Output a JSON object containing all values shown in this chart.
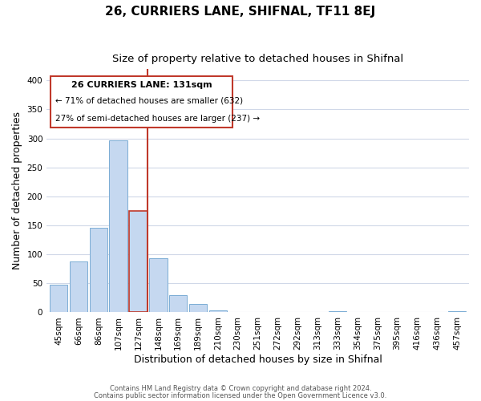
{
  "title": "26, CURRIERS LANE, SHIFNAL, TF11 8EJ",
  "subtitle": "Size of property relative to detached houses in Shifnal",
  "xlabel": "Distribution of detached houses by size in Shifnal",
  "ylabel": "Number of detached properties",
  "bar_labels": [
    "45sqm",
    "66sqm",
    "86sqm",
    "107sqm",
    "127sqm",
    "148sqm",
    "169sqm",
    "189sqm",
    "210sqm",
    "230sqm",
    "251sqm",
    "272sqm",
    "292sqm",
    "313sqm",
    "333sqm",
    "354sqm",
    "375sqm",
    "395sqm",
    "416sqm",
    "436sqm",
    "457sqm"
  ],
  "bar_heights": [
    47,
    88,
    146,
    297,
    175,
    93,
    30,
    14,
    4,
    0,
    0,
    0,
    0,
    0,
    2,
    0,
    0,
    0,
    0,
    0,
    2
  ],
  "bar_color": "#c5d8f0",
  "bar_edge_color": "#7badd4",
  "highlight_bar_index": 4,
  "highlight_bar_edge_color": "#c0392b",
  "vline_color": "#c0392b",
  "ylim": [
    0,
    420
  ],
  "yticks": [
    0,
    50,
    100,
    150,
    200,
    250,
    300,
    350,
    400
  ],
  "annotation_title": "26 CURRIERS LANE: 131sqm",
  "annotation_line1": "← 71% of detached houses are smaller (632)",
  "annotation_line2": "27% of semi-detached houses are larger (237) →",
  "footer1": "Contains HM Land Registry data © Crown copyright and database right 2024.",
  "footer2": "Contains public sector information licensed under the Open Government Licence v3.0.",
  "title_fontsize": 11,
  "subtitle_fontsize": 9.5,
  "tick_fontsize": 7.5,
  "ylabel_fontsize": 9,
  "xlabel_fontsize": 9,
  "annotation_fontsize": 8,
  "footer_fontsize": 6,
  "background_color": "#ffffff",
  "grid_color": "#d0d8e8"
}
